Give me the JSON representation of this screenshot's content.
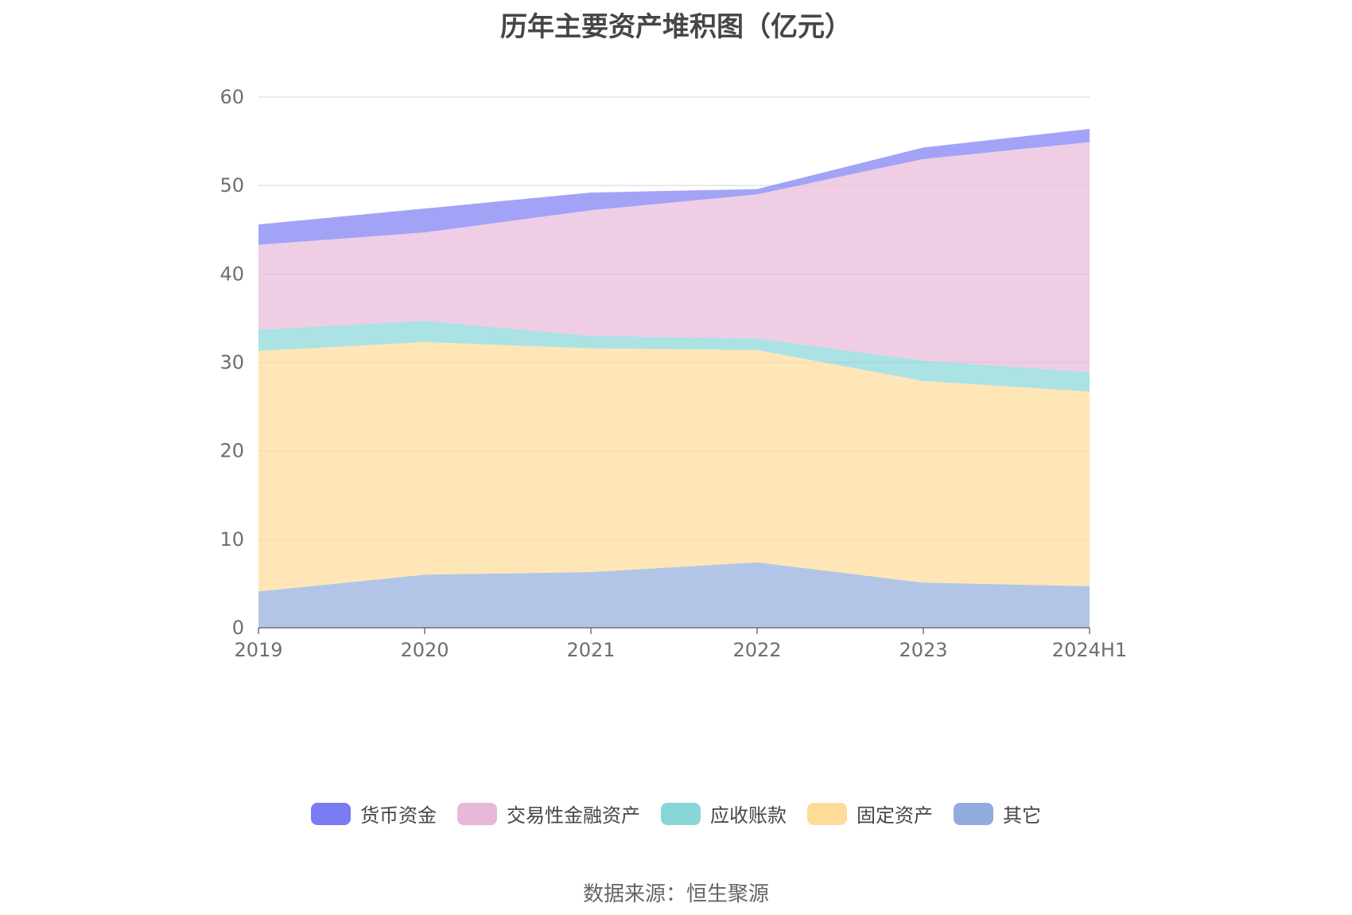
{
  "chart_data": {
    "type": "area",
    "stacked": true,
    "title": "历年主要资产堆积图（亿元）",
    "categories": [
      "2019",
      "2020",
      "2021",
      "2022",
      "2023",
      "2024H1"
    ],
    "ylim": [
      0,
      60
    ],
    "yticks": [
      "0",
      "10",
      "20",
      "30",
      "40",
      "50",
      "60"
    ],
    "grid": true,
    "legend_position": "bottom",
    "series": [
      {
        "name": "其它",
        "color": "#91acdc",
        "values": [
          4.1,
          6.0,
          6.3,
          7.4,
          5.1,
          4.7
        ]
      },
      {
        "name": "固定资产",
        "color": "#fddb99",
        "values": [
          27.2,
          26.3,
          25.3,
          24.0,
          22.8,
          22.0
        ]
      },
      {
        "name": "应收账款",
        "color": "#88d6d8",
        "values": [
          2.4,
          2.4,
          1.4,
          1.3,
          2.3,
          2.2
        ]
      },
      {
        "name": "交易性金融资产",
        "color": "#e8b8d8",
        "values": [
          9.6,
          10.0,
          14.2,
          16.3,
          22.8,
          26.0
        ]
      },
      {
        "name": "货币资金",
        "color": "#7b7cf4",
        "values": [
          2.3,
          2.7,
          2.0,
          0.6,
          1.3,
          1.5
        ]
      }
    ],
    "legend_order": [
      "货币资金",
      "交易性金融资产",
      "应收账款",
      "固定资产",
      "其它"
    ]
  },
  "source": "数据来源：恒生聚源"
}
